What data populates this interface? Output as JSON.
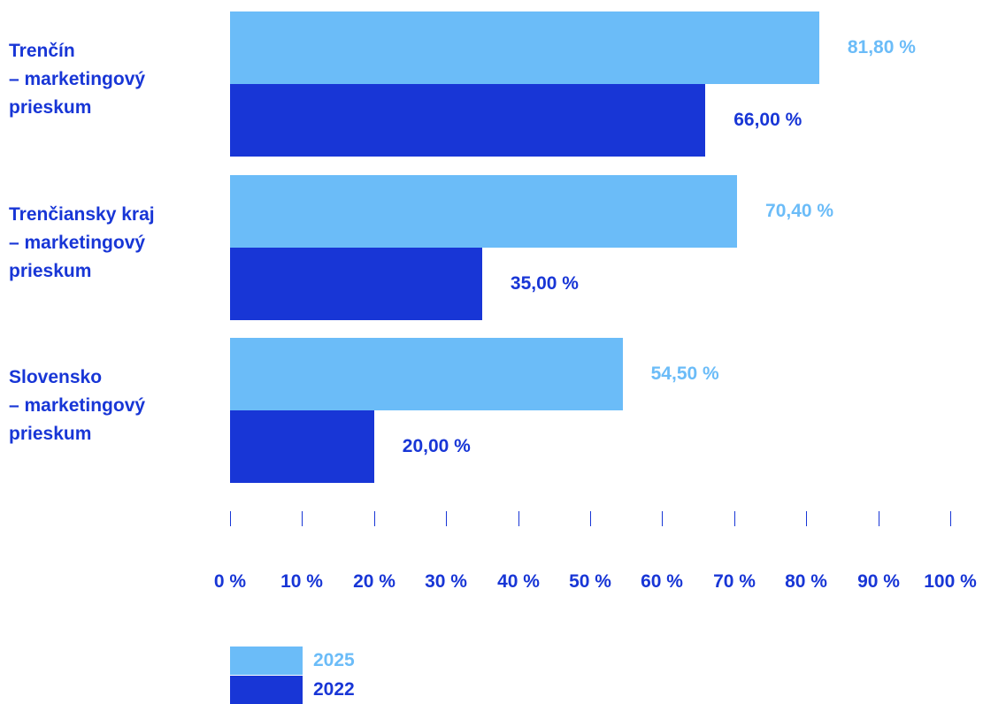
{
  "colors": {
    "series_2025": "#6bbcf8",
    "series_2022": "#1836d6"
  },
  "chart_data": {
    "type": "bar",
    "orientation": "horizontal",
    "categories": [
      [
        "Trenčín",
        "– marketingový",
        "prieskum"
      ],
      [
        "Trenčiansky kraj",
        "– marketingový",
        "prieskum"
      ],
      [
        "Slovensko",
        "– marketingový",
        "prieskum"
      ]
    ],
    "series": [
      {
        "name": "2025",
        "values": [
          81.8,
          70.4,
          54.5
        ],
        "labels": [
          "81,80 %",
          "70,40 %",
          "54,50 %"
        ]
      },
      {
        "name": "2022",
        "values": [
          66.0,
          35.0,
          20.0
        ],
        "labels": [
          "66,00 %",
          "35,00 %",
          "20,00 %"
        ]
      }
    ],
    "xlim": [
      0,
      100
    ],
    "xticks": [
      0,
      10,
      20,
      30,
      40,
      50,
      60,
      70,
      80,
      90,
      100
    ],
    "xtick_labels": [
      "0 %",
      "10 %",
      "20 %",
      "30 %",
      "40 %",
      "50 %",
      "60 %",
      "70 %",
      "80 %",
      "90 %",
      "100 %"
    ],
    "grid": false,
    "legend_position": "bottom-left"
  }
}
